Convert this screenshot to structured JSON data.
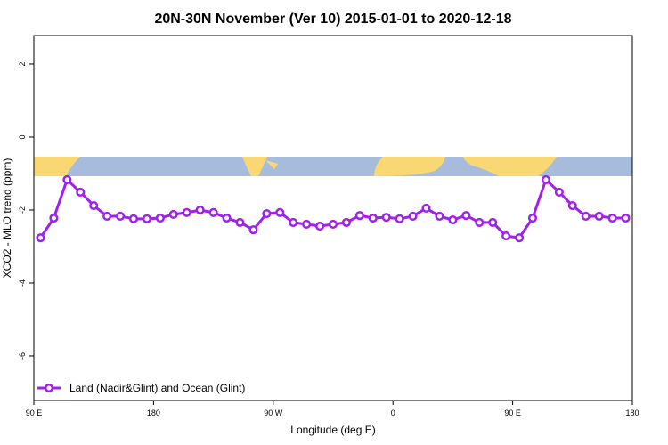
{
  "chart_data": {
    "type": "line",
    "title": "20N-30N November (Ver 10)   2015-01-01 to 2020-12-18",
    "x_label": "Longitude (deg E)",
    "y_label": "XCO2 - MLO trend (ppm)",
    "xlim": [
      90,
      540
    ],
    "ylim": [
      -7.22,
      2.78
    ],
    "xticks": [
      {
        "value": 90,
        "label": "90 E"
      },
      180,
      {
        "value": 270,
        "label": "90 W"
      },
      {
        "value": 360,
        "label": "0"
      },
      {
        "value": 450,
        "label": "90 E"
      },
      {
        "value": 540,
        "label": "180"
      }
    ],
    "yticks": [
      -6,
      -4,
      -2,
      0,
      2
    ],
    "legend": "bottomleft",
    "x": [
      95,
      105,
      115,
      125,
      135,
      145,
      155,
      165,
      175,
      185,
      195,
      205,
      215,
      225,
      235,
      245,
      255,
      265,
      275,
      285,
      295,
      305,
      315,
      325,
      335,
      345,
      355,
      365,
      375,
      385,
      395,
      405,
      415,
      425,
      435,
      445,
      455,
      465,
      475,
      485,
      495,
      505,
      515,
      525,
      535
    ],
    "series": [
      {
        "name": "Land (Nadir&Glint) and Ocean (Glint)",
        "color": "#a020f0",
        "values": [
          -2.76,
          -2.22,
          -1.17,
          -1.51,
          -1.88,
          -2.17,
          -2.17,
          -2.24,
          -2.24,
          -2.22,
          -2.12,
          -2.07,
          -2.0,
          -2.07,
          -2.22,
          -2.34,
          -2.54,
          -2.1,
          -2.07,
          -2.34,
          -2.39,
          -2.44,
          -2.39,
          -2.34,
          -2.15,
          -2.22,
          -2.2,
          -2.24,
          -2.17,
          -1.95,
          -2.17,
          -2.27,
          -2.15,
          -2.34,
          -2.34,
          -2.71,
          -2.76,
          -2.22,
          -1.17,
          -1.51,
          -1.88,
          -2.17,
          -2.17,
          -2.22,
          -2.22
        ]
      }
    ]
  }
}
